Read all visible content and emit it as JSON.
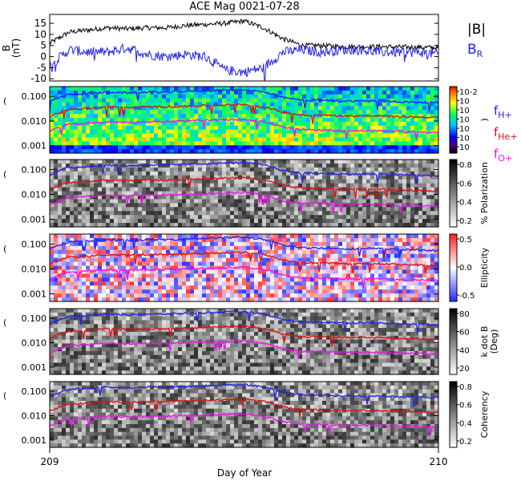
{
  "title": "ACE Mag 0021-07-28",
  "xaxis": {
    "label": "Day of Year",
    "start_label": "209",
    "end_label": "210",
    "range": [
      209,
      210
    ]
  },
  "legend_top": {
    "b_total": "|B|",
    "b_r": "B",
    "b_r_sub": "R",
    "b_total_color": "#000000",
    "b_r_color": "#2222ee"
  },
  "legend_freq": [
    {
      "main": "f",
      "sub": "H+",
      "color": "#2222ee"
    },
    {
      "main": "f",
      "sub": "He+",
      "color": "#dd1111"
    },
    {
      "main": "f",
      "sub": "O+",
      "color": "#ee11ee"
    }
  ],
  "chart_data": [
    {
      "type": "line",
      "panel": "magnetic field",
      "ylabel": "B",
      "ylabel_unit": "(nT)",
      "yticks": [
        "15",
        "10",
        "5",
        "0",
        "-5",
        "-10"
      ],
      "ylim": [
        -11,
        19
      ],
      "x_knots": [
        209.0,
        209.05,
        209.1,
        209.15,
        209.2,
        209.25,
        209.3,
        209.35,
        209.4,
        209.45,
        209.5,
        209.55,
        209.6,
        209.65,
        209.7,
        209.75,
        209.8,
        209.85,
        209.9,
        209.95,
        210.0
      ],
      "series": [
        {
          "name": "|B|",
          "color": "#000000",
          "values": [
            6,
            11,
            12,
            13,
            12.5,
            13,
            13,
            14,
            14.5,
            15,
            16,
            13,
            8,
            5,
            5,
            4.5,
            4.5,
            4.5,
            4.3,
            4.2,
            4
          ]
        },
        {
          "name": "B_R",
          "color": "#2222ee",
          "values": [
            -4,
            3,
            2,
            2,
            4,
            1,
            0,
            1,
            0,
            -6,
            -7,
            -5,
            2,
            3,
            2,
            3,
            3,
            2,
            2,
            2,
            1
          ]
        }
      ]
    },
    {
      "type": "heatmap",
      "panel": "power spectrum",
      "ylabel": "(",
      "yticks": [
        "0.100",
        "0.010",
        "0.001"
      ],
      "colorbar_ticks": [
        "10-2",
        "10",
        "10",
        "10",
        "10",
        "10",
        "10"
      ],
      "colorbar_label": ")",
      "ylim_log": [
        0.0005,
        0.25
      ]
    },
    {
      "type": "heatmap",
      "panel": "polarization",
      "ylabel": "(",
      "yticks": [
        "0.100",
        "0.010",
        "0.001"
      ],
      "colorbar_ticks": [
        "0.8",
        "0.6",
        "0.4",
        "0.2"
      ],
      "colorbar_label": "% Polarization"
    },
    {
      "type": "heatmap",
      "panel": "ellipticity",
      "ylabel": "(",
      "yticks": [
        "0.100",
        "0.010",
        "0.001"
      ],
      "colorbar_ticks": [
        "0.5",
        "0.0",
        "-0.5"
      ],
      "colorbar_label": "Ellipticity"
    },
    {
      "type": "heatmap",
      "panel": "k dot B",
      "ylabel": "(",
      "yticks": [
        "0.100",
        "0.010",
        "0.001"
      ],
      "colorbar_ticks": [
        "80",
        "60",
        "40",
        "20"
      ],
      "colorbar_label": "k dot B",
      "colorbar_label2": "(Deg)"
    },
    {
      "type": "heatmap",
      "panel": "coherency",
      "ylabel": "(",
      "yticks": [
        "0.100",
        "0.010",
        "0.001"
      ],
      "colorbar_ticks": [
        "0.8",
        "0.6",
        "0.4",
        "0.2"
      ],
      "colorbar_label": "Coherency"
    }
  ],
  "gyro_lines": {
    "x_knots": [
      209.0,
      209.05,
      209.1,
      209.15,
      209.2,
      209.25,
      209.3,
      209.35,
      209.4,
      209.45,
      209.5,
      209.55,
      209.6,
      209.65,
      209.7,
      209.75,
      209.8,
      209.85,
      209.9,
      209.95,
      210.0
    ],
    "fH": [
      0.06,
      0.12,
      0.13,
      0.15,
      0.14,
      0.15,
      0.15,
      0.16,
      0.17,
      0.18,
      0.19,
      0.15,
      0.09,
      0.07,
      0.07,
      0.065,
      0.065,
      0.065,
      0.06,
      0.058,
      0.055
    ]
  }
}
